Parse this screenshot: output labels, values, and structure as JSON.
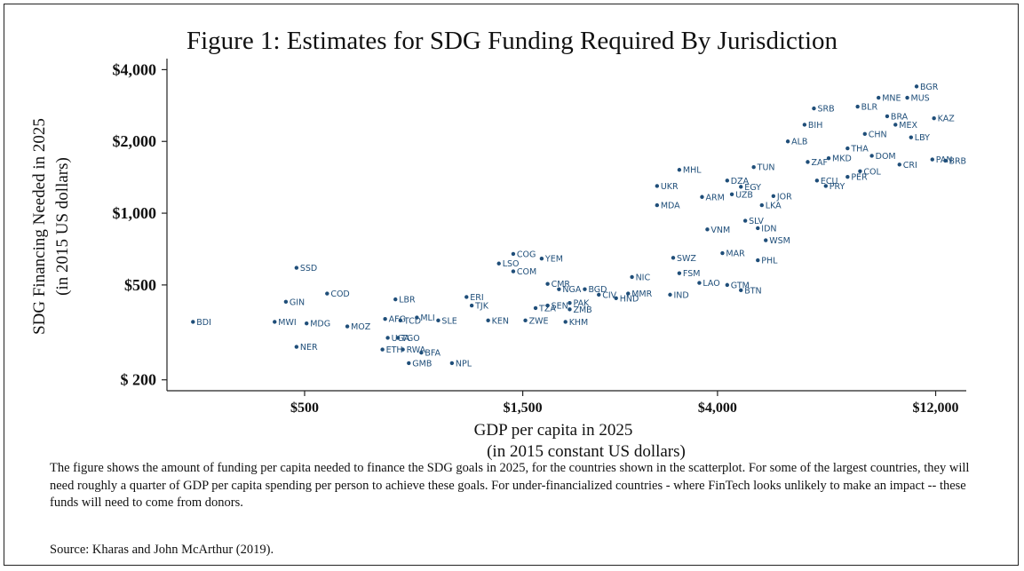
{
  "figure": {
    "title": "Figure 1: Estimates for SDG Funding Required By Jurisdiction",
    "caption": "The figure shows the amount of funding per capita needed to finance the SDG goals in 2025, for the countries shown in the scatterplot. For some of the largest countries, they will need roughly a quarter of GDP per capita spending per person to achieve these goals. For under-financialized countries - where FinTech looks unlikely to make an impact -- these funds will need to come from donors.",
    "source": "Source: Kharas and John McArthur (2019)."
  },
  "chart_data": {
    "type": "scatter",
    "title": "Figure 1: Estimates for SDG Funding Required By Jurisdiction",
    "xlabel": [
      "GDP per capita in 2025",
      "(in 2015 constant US dollars)"
    ],
    "ylabel": [
      "SDG Financing Needed in 2025",
      "(in 2015 US dollars)"
    ],
    "x_scale": "log",
    "y_scale": "log",
    "xlim": [
      250,
      14000
    ],
    "ylim": [
      180,
      4300
    ],
    "x_ticks": [
      {
        "value": 500,
        "label": "$500"
      },
      {
        "value": 1500,
        "label": "$1,500"
      },
      {
        "value": 4000,
        "label": "$4,000"
      },
      {
        "value": 12000,
        "label": "$12,000"
      }
    ],
    "y_ticks": [
      {
        "value": 200,
        "label": "$ 200"
      },
      {
        "value": 500,
        "label": "$500"
      },
      {
        "value": 1000,
        "label": "$1,000"
      },
      {
        "value": 2000,
        "label": "$2,000"
      },
      {
        "value": 4000,
        "label": "$4,000"
      }
    ],
    "marker_color": "#1f4e79",
    "grid": false,
    "points": [
      {
        "label": "BDI",
        "x": 285,
        "y": 350
      },
      {
        "label": "MWI",
        "x": 430,
        "y": 350
      },
      {
        "label": "SSD",
        "x": 480,
        "y": 590
      },
      {
        "label": "NER",
        "x": 480,
        "y": 275
      },
      {
        "label": "MDG",
        "x": 505,
        "y": 345
      },
      {
        "label": "GIN",
        "x": 455,
        "y": 425
      },
      {
        "label": "COD",
        "x": 560,
        "y": 460
      },
      {
        "label": "MOZ",
        "x": 620,
        "y": 335
      },
      {
        "label": "LBR",
        "x": 790,
        "y": 435
      },
      {
        "label": "GMB",
        "x": 845,
        "y": 235
      },
      {
        "label": "NPL",
        "x": 1050,
        "y": 235
      },
      {
        "label": "UGA",
        "x": 760,
        "y": 300
      },
      {
        "label": "TGO",
        "x": 800,
        "y": 300
      },
      {
        "label": "ETH",
        "x": 740,
        "y": 268
      },
      {
        "label": "RWA",
        "x": 820,
        "y": 268
      },
      {
        "label": "BFA",
        "x": 900,
        "y": 260
      },
      {
        "label": "TCD",
        "x": 810,
        "y": 355
      },
      {
        "label": "MLI",
        "x": 880,
        "y": 365
      },
      {
        "label": "AFG",
        "x": 750,
        "y": 360
      },
      {
        "label": "SLE",
        "x": 980,
        "y": 355
      },
      {
        "label": "TJK",
        "x": 1160,
        "y": 410
      },
      {
        "label": "ERI",
        "x": 1130,
        "y": 445
      },
      {
        "label": "KEN",
        "x": 1260,
        "y": 355
      },
      {
        "label": "ZWE",
        "x": 1520,
        "y": 355
      },
      {
        "label": "KHM",
        "x": 1860,
        "y": 350
      },
      {
        "label": "COG",
        "x": 1430,
        "y": 675
      },
      {
        "label": "YEM",
        "x": 1650,
        "y": 645
      },
      {
        "label": "LSO",
        "x": 1330,
        "y": 615
      },
      {
        "label": "COM",
        "x": 1430,
        "y": 570
      },
      {
        "label": "CMR",
        "x": 1700,
        "y": 505
      },
      {
        "label": "NGA",
        "x": 1800,
        "y": 480
      },
      {
        "label": "BGD",
        "x": 2050,
        "y": 480
      },
      {
        "label": "CIV",
        "x": 2200,
        "y": 455
      },
      {
        "label": "HND",
        "x": 2400,
        "y": 440
      },
      {
        "label": "NIC",
        "x": 2600,
        "y": 540
      },
      {
        "label": "MMR",
        "x": 2550,
        "y": 460
      },
      {
        "label": "PAK",
        "x": 1900,
        "y": 420
      },
      {
        "label": "SEN",
        "x": 1700,
        "y": 410
      },
      {
        "label": "TZA",
        "x": 1600,
        "y": 400
      },
      {
        "label": "ZMB",
        "x": 1900,
        "y": 395
      },
      {
        "label": "IND",
        "x": 3150,
        "y": 455
      },
      {
        "label": "LAO",
        "x": 3650,
        "y": 510
      },
      {
        "label": "GTM",
        "x": 4200,
        "y": 500
      },
      {
        "label": "BTN",
        "x": 4500,
        "y": 475
      },
      {
        "label": "FSM",
        "x": 3300,
        "y": 560
      },
      {
        "label": "SWZ",
        "x": 3200,
        "y": 650
      },
      {
        "label": "PHL",
        "x": 4900,
        "y": 635
      },
      {
        "label": "MAR",
        "x": 4100,
        "y": 680
      },
      {
        "label": "WSM",
        "x": 5100,
        "y": 770
      },
      {
        "label": "VNM",
        "x": 3800,
        "y": 855
      },
      {
        "label": "IDN",
        "x": 4900,
        "y": 865
      },
      {
        "label": "SLV",
        "x": 4600,
        "y": 930
      },
      {
        "label": "MDA",
        "x": 2950,
        "y": 1080
      },
      {
        "label": "UKR",
        "x": 2950,
        "y": 1300
      },
      {
        "label": "ARM",
        "x": 3700,
        "y": 1170
      },
      {
        "label": "UZB",
        "x": 4300,
        "y": 1200
      },
      {
        "label": "LKA",
        "x": 5000,
        "y": 1080
      },
      {
        "label": "JOR",
        "x": 5300,
        "y": 1180
      },
      {
        "label": "EGY",
        "x": 4500,
        "y": 1290
      },
      {
        "label": "DZA",
        "x": 4200,
        "y": 1370
      },
      {
        "label": "MHL",
        "x": 3300,
        "y": 1520
      },
      {
        "label": "TUN",
        "x": 4800,
        "y": 1560
      },
      {
        "label": "ALB",
        "x": 5700,
        "y": 2000
      },
      {
        "label": "SRB",
        "x": 6500,
        "y": 2750
      },
      {
        "label": "PER",
        "x": 7700,
        "y": 1420
      },
      {
        "label": "COL",
        "x": 8200,
        "y": 1500
      },
      {
        "label": "ECU",
        "x": 6600,
        "y": 1370
      },
      {
        "label": "PRY",
        "x": 6900,
        "y": 1300
      },
      {
        "label": "ZAF",
        "x": 6300,
        "y": 1640
      },
      {
        "label": "THA",
        "x": 7700,
        "y": 1870
      },
      {
        "label": "MKD",
        "x": 7000,
        "y": 1700
      },
      {
        "label": "BIH",
        "x": 6200,
        "y": 2350
      },
      {
        "label": "DOM",
        "x": 8700,
        "y": 1740
      },
      {
        "label": "BRA",
        "x": 9400,
        "y": 2550
      },
      {
        "label": "CHN",
        "x": 8400,
        "y": 2150
      },
      {
        "label": "MEX",
        "x": 9800,
        "y": 2350
      },
      {
        "label": "BLR",
        "x": 8100,
        "y": 2800
      },
      {
        "label": "MNE",
        "x": 9000,
        "y": 3050
      },
      {
        "label": "MUS",
        "x": 10400,
        "y": 3050
      },
      {
        "label": "KAZ",
        "x": 11900,
        "y": 2500
      },
      {
        "label": "BGR",
        "x": 10900,
        "y": 3400
      },
      {
        "label": "CRI",
        "x": 10000,
        "y": 1600
      },
      {
        "label": "LBY",
        "x": 10600,
        "y": 2080
      },
      {
        "label": "PAN",
        "x": 11800,
        "y": 1680
      },
      {
        "label": "BRB",
        "x": 12600,
        "y": 1660
      }
    ]
  }
}
